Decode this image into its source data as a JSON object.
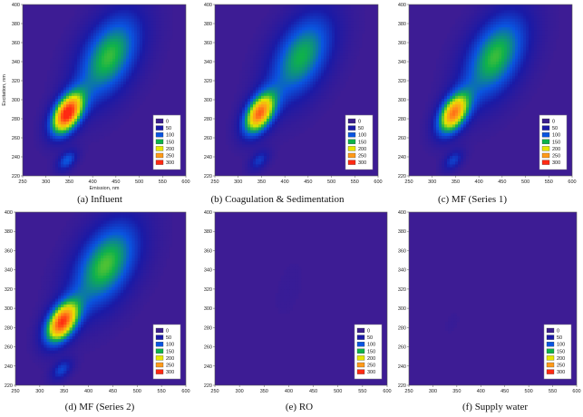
{
  "chart_data": {
    "type": "heatmap",
    "description_kind": "excitation-emission matrix contour plots",
    "xlabel": "Emission, nm",
    "ylabel": "Excitation, nm",
    "xlim": [
      250,
      600
    ],
    "ylim": [
      220,
      400
    ],
    "x_ticks": [
      "250",
      "300",
      "350",
      "400",
      "450",
      "500",
      "550",
      "600"
    ],
    "y_ticks": [
      "220",
      "240",
      "260",
      "280",
      "300",
      "320",
      "340",
      "360",
      "380",
      "400"
    ],
    "legend": {
      "placement": "lower-right",
      "levels": [
        "0",
        "50",
        "100",
        "150",
        "200",
        "250",
        "300"
      ],
      "colors": [
        "#3b1f8c",
        "#1a1aa6",
        "#0a55e0",
        "#0fb24a",
        "#e6e600",
        "#ff9a1a",
        "#ff2a12"
      ]
    },
    "background_color": "#3d1c94",
    "panels": [
      {
        "caption": "(a)  Influent",
        "peaks": [
          {
            "em": 345,
            "ex": 285,
            "amp": 300,
            "sem": 22,
            "sex": 14
          },
          {
            "em": 435,
            "ex": 345,
            "amp": 160,
            "sem": 45,
            "sex": 30
          },
          {
            "em": 345,
            "ex": 236,
            "amp": 100,
            "sem": 14,
            "sex": 7
          }
        ]
      },
      {
        "caption": "(b)  Coagulation & Sedimentation",
        "peaks": [
          {
            "em": 345,
            "ex": 285,
            "amp": 260,
            "sem": 22,
            "sex": 14
          },
          {
            "em": 435,
            "ex": 345,
            "amp": 150,
            "sem": 45,
            "sex": 30
          },
          {
            "em": 345,
            "ex": 236,
            "amp": 75,
            "sem": 14,
            "sex": 7
          }
        ]
      },
      {
        "caption": "(c)  MF  (Series  1)",
        "peaks": [
          {
            "em": 345,
            "ex": 285,
            "amp": 250,
            "sem": 22,
            "sex": 14
          },
          {
            "em": 435,
            "ex": 345,
            "amp": 160,
            "sem": 45,
            "sex": 30
          },
          {
            "em": 345,
            "ex": 236,
            "amp": 80,
            "sem": 14,
            "sex": 7
          }
        ]
      },
      {
        "caption": "(d)  MF  (Series  2)",
        "peaks": [
          {
            "em": 345,
            "ex": 285,
            "amp": 280,
            "sem": 22,
            "sex": 14
          },
          {
            "em": 435,
            "ex": 345,
            "amp": 165,
            "sem": 45,
            "sex": 30
          },
          {
            "em": 345,
            "ex": 236,
            "amp": 85,
            "sem": 14,
            "sex": 7
          }
        ]
      },
      {
        "caption": "(e)  RO",
        "peaks": [
          {
            "em": 400,
            "ex": 320,
            "amp": 8,
            "sem": 20,
            "sex": 20
          }
        ]
      },
      {
        "caption": "(f)  Supply  water",
        "peaks": [
          {
            "em": 340,
            "ex": 285,
            "amp": 8,
            "sem": 10,
            "sex": 8
          }
        ]
      }
    ]
  }
}
